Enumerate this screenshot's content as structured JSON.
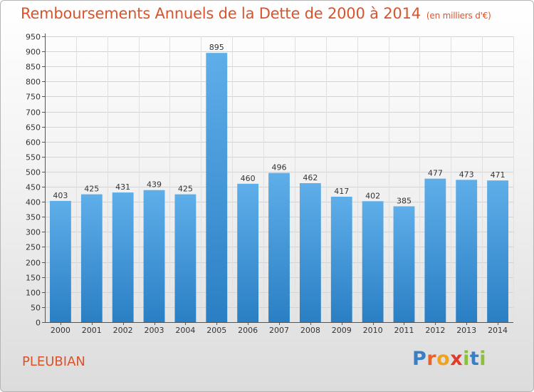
{
  "page": {
    "title": "Remboursements Annuels de la Dette de 2000 à 2014",
    "unit_note": "(en milliers d'€)",
    "city": "PLEUBIAN",
    "logo": {
      "text": "Proxiti",
      "letters": [
        {
          "ch": "P",
          "color": "#3a7fc4"
        },
        {
          "ch": "r",
          "color": "#e8622a"
        },
        {
          "ch": "o",
          "color": "#f0a21c"
        },
        {
          "ch": "x",
          "color": "#e23a2a"
        },
        {
          "ch": "i",
          "color": "#8cbf3a"
        },
        {
          "ch": "t",
          "color": "#3a7fc4"
        },
        {
          "ch": "i",
          "color": "#8cbf3a"
        }
      ]
    }
  },
  "colors": {
    "title": "#d9532b",
    "bar_top": "#5eaee9",
    "bar_bottom": "#2a7fc4"
  },
  "chart_data": {
    "type": "bar",
    "title": "Remboursements Annuels de la Dette de 2000 à 2014",
    "categories": [
      "2000",
      "2001",
      "2002",
      "2003",
      "2004",
      "2005",
      "2006",
      "2007",
      "2008",
      "2009",
      "2010",
      "2011",
      "2012",
      "2013",
      "2014"
    ],
    "values": [
      403,
      425,
      431,
      439,
      425,
      895,
      460,
      496,
      462,
      417,
      402,
      385,
      477,
      473,
      471
    ],
    "ylim": [
      0,
      950
    ],
    "ytick_step": 50,
    "grid": true,
    "data_labels": true
  }
}
